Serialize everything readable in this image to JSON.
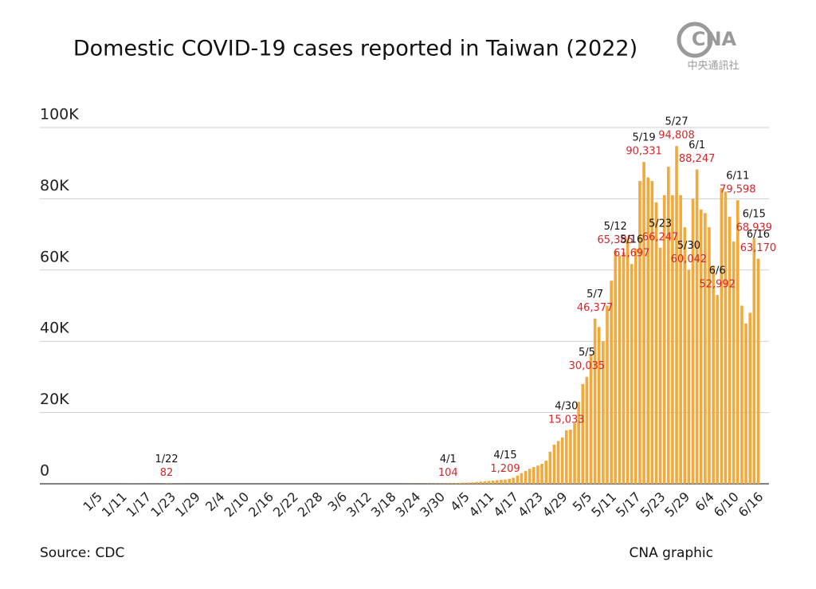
{
  "chart_data": {
    "type": "bar",
    "title": "Domestic COVID-19 cases reported in Taiwan (2022)",
    "logo": "CNA",
    "logo_sub": "中央通訊社",
    "source": "Source: CDC",
    "credit": "CNA graphic",
    "color": "#f2a93b",
    "grid": true,
    "ylim": [
      0,
      100000
    ],
    "yticks": [
      0,
      {
        "value": 20000,
        "label": "20K"
      },
      {
        "value": 40000,
        "label": "40K"
      },
      {
        "value": 60000,
        "label": "60K"
      },
      {
        "value": 80000,
        "label": "80K"
      },
      {
        "value": 100000,
        "label": "100K"
      }
    ],
    "categories": [
      "1/5",
      null,
      null,
      null,
      null,
      null,
      "1/11",
      null,
      null,
      null,
      null,
      null,
      "1/17",
      null,
      null,
      null,
      null,
      null,
      "1/23",
      null,
      null,
      null,
      null,
      null,
      "1/29",
      null,
      null,
      null,
      null,
      null,
      "2/4",
      null,
      null,
      null,
      null,
      null,
      "2/10",
      null,
      null,
      null,
      null,
      null,
      "2/16",
      null,
      null,
      null,
      null,
      null,
      "2/22",
      null,
      null,
      null,
      null,
      null,
      "2/28",
      null,
      null,
      null,
      null,
      null,
      "3/6",
      null,
      null,
      null,
      null,
      null,
      "3/12",
      null,
      null,
      null,
      null,
      null,
      "3/18",
      null,
      null,
      null,
      null,
      null,
      "3/24",
      null,
      null,
      null,
      null,
      null,
      "3/30",
      null,
      null,
      null,
      null,
      null,
      "4/5",
      null,
      null,
      null,
      null,
      null,
      "4/11",
      null,
      null,
      null,
      null,
      null,
      "4/17",
      null,
      null,
      null,
      null,
      null,
      "4/23",
      null,
      null,
      null,
      null,
      null,
      "4/29",
      null,
      null,
      null,
      null,
      null,
      "5/5",
      null,
      null,
      null,
      null,
      null,
      "5/11",
      null,
      null,
      null,
      null,
      null,
      "5/17",
      null,
      null,
      null,
      null,
      null,
      "5/23",
      null,
      null,
      null,
      null,
      null,
      "5/29",
      null,
      null,
      null,
      null,
      null,
      "6/4",
      null,
      null,
      null,
      null,
      null,
      "6/10",
      null,
      null,
      null,
      null,
      null,
      "6/16"
    ],
    "values": [
      2,
      5,
      3,
      8,
      10,
      12,
      15,
      20,
      30,
      25,
      20,
      18,
      15,
      12,
      10,
      8,
      20,
      82,
      40,
      30,
      20,
      15,
      10,
      8,
      5,
      3,
      2,
      0,
      1,
      2,
      1,
      3,
      5,
      8,
      10,
      5,
      3,
      2,
      4,
      6,
      3,
      2,
      1,
      2,
      3,
      4,
      5,
      3,
      2,
      1,
      2,
      3,
      2,
      1,
      2,
      1,
      2,
      3,
      2,
      4,
      3,
      2,
      5,
      6,
      4,
      3,
      5,
      6,
      8,
      10,
      7,
      5,
      8,
      10,
      12,
      15,
      20,
      25,
      18,
      30,
      40,
      50,
      60,
      70,
      80,
      90,
      104,
      150,
      200,
      250,
      300,
      350,
      400,
      500,
      600,
      700,
      800,
      900,
      1000,
      1100,
      1209,
      1400,
      1700,
      2300,
      3000,
      3600,
      4200,
      4700,
      5100,
      5600,
      6500,
      9000,
      11000,
      12000,
      13000,
      15033,
      15200,
      17000,
      23000,
      28000,
      30035,
      36000,
      46377,
      44000,
      40000,
      50000,
      57000,
      65385,
      64000,
      65000,
      69000,
      61697,
      66000,
      85000,
      90331,
      86000,
      85000,
      79000,
      66247,
      81000,
      89000,
      81000,
      94808,
      81000,
      72000,
      60042,
      80000,
      88247,
      77000,
      76000,
      72000,
      61000,
      52992,
      83000,
      82000,
      75000,
      68000,
      79598,
      50000,
      45000,
      48000,
      68939,
      63170
    ],
    "value_labels": [
      null,
      null,
      null,
      null,
      null,
      null,
      null,
      null,
      null,
      null,
      null,
      null,
      null,
      null,
      null,
      null,
      null,
      "82",
      null,
      null,
      null,
      null,
      null,
      null,
      null,
      null,
      null,
      null,
      null,
      null,
      null,
      null,
      null,
      null,
      null,
      null,
      null,
      null,
      null,
      null,
      null,
      null,
      null,
      null,
      null,
      null,
      null,
      null,
      null,
      null,
      null,
      null,
      null,
      null,
      null,
      null,
      null,
      null,
      null,
      null,
      null,
      null,
      null,
      null,
      null,
      null,
      null,
      null,
      null,
      null,
      null,
      null,
      null,
      null,
      null,
      null,
      null,
      null,
      null,
      null,
      null,
      null,
      null,
      null,
      null,
      null,
      "104",
      null,
      null,
      null,
      null,
      null,
      null,
      null,
      null,
      null,
      null,
      null,
      null,
      null,
      "1,209",
      null,
      null,
      null,
      null,
      null,
      null,
      null,
      null,
      null,
      null,
      null,
      null,
      null,
      null,
      "15,033",
      null,
      null,
      null,
      null,
      "30,035",
      null,
      "46,377",
      null,
      null,
      null,
      null,
      "65,385",
      null,
      null,
      null,
      "61,697",
      null,
      null,
      "90,331",
      null,
      null,
      null,
      "66,247",
      null,
      null,
      null,
      "94,808",
      null,
      null,
      "60,042",
      null,
      "88,247",
      null,
      null,
      null,
      null,
      "52,992",
      null,
      null,
      null,
      null,
      "79,598",
      null,
      null,
      null,
      "68,939",
      "63,170"
    ],
    "annotation_dates": [
      null,
      null,
      null,
      null,
      null,
      null,
      null,
      null,
      null,
      null,
      null,
      null,
      null,
      null,
      null,
      null,
      null,
      "1/22",
      null,
      null,
      null,
      null,
      null,
      null,
      null,
      null,
      null,
      null,
      null,
      null,
      null,
      null,
      null,
      null,
      null,
      null,
      null,
      null,
      null,
      null,
      null,
      null,
      null,
      null,
      null,
      null,
      null,
      null,
      null,
      null,
      null,
      null,
      null,
      null,
      null,
      null,
      null,
      null,
      null,
      null,
      null,
      null,
      null,
      null,
      null,
      null,
      null,
      null,
      null,
      null,
      null,
      null,
      null,
      null,
      null,
      null,
      null,
      null,
      null,
      null,
      null,
      null,
      null,
      null,
      null,
      null,
      "4/1",
      null,
      null,
      null,
      null,
      null,
      null,
      null,
      null,
      null,
      null,
      null,
      null,
      null,
      "4/15",
      null,
      null,
      null,
      null,
      null,
      null,
      null,
      null,
      null,
      null,
      null,
      null,
      null,
      null,
      "4/30",
      null,
      null,
      null,
      null,
      "5/5",
      null,
      "5/7",
      null,
      null,
      null,
      null,
      "5/12",
      null,
      null,
      null,
      "5/16",
      null,
      null,
      "5/19",
      null,
      null,
      null,
      "5/23",
      null,
      null,
      null,
      "5/27",
      null,
      null,
      "5/30",
      null,
      "6/1",
      null,
      null,
      null,
      null,
      "6/6",
      null,
      null,
      null,
      null,
      "6/11",
      null,
      null,
      null,
      "6/15",
      "6/16"
    ]
  }
}
